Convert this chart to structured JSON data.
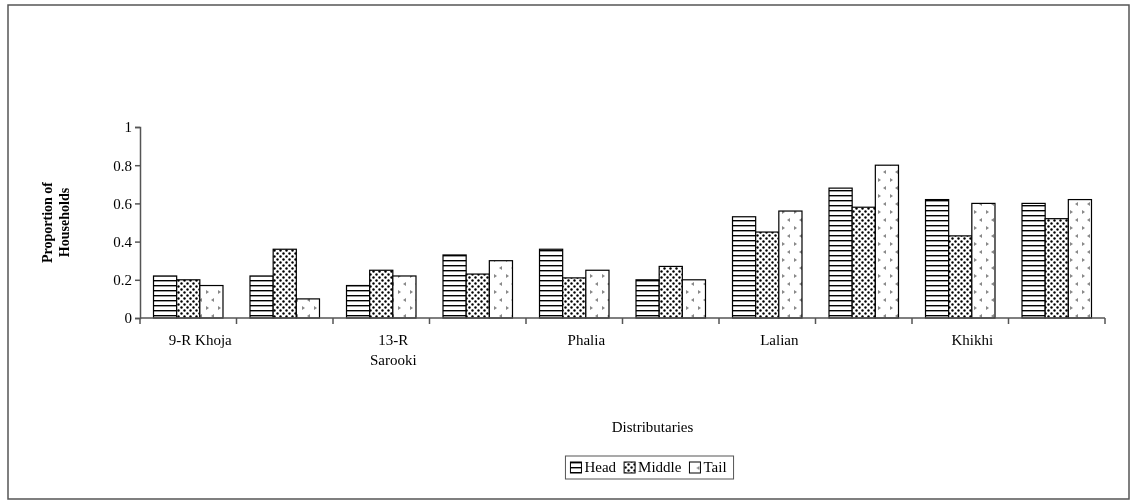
{
  "chart_data": {
    "type": "bar",
    "xlabel": "Distributaries",
    "ylabel": "Proportion of Households",
    "categories": [
      "9-R Khoja",
      null,
      "13-R Sarooki",
      null,
      "Phalia",
      null,
      "Lalian",
      null,
      "Khikhi",
      null
    ],
    "series": [
      {
        "name": "Head",
        "color": "#000000",
        "values": [
          0.22,
          0.22,
          0.17,
          0.33,
          0.36,
          0.2,
          0.53,
          0.68,
          0.62,
          0.6
        ]
      },
      {
        "name": "Middle",
        "color": "#000000",
        "values": [
          0.2,
          0.36,
          0.25,
          0.23,
          0.21,
          0.27,
          0.45,
          0.58,
          0.43,
          0.52
        ]
      },
      {
        "name": "Tail",
        "color": "#000000",
        "values": [
          0.17,
          0.1,
          0.22,
          0.3,
          0.25,
          0.2,
          0.56,
          0.8,
          0.6,
          0.62
        ]
      }
    ],
    "ylim": [
      0,
      1
    ],
    "yticks": [
      0,
      0.2,
      0.4,
      0.6,
      0.8,
      1
    ],
    "grid": false,
    "legend": "bottom"
  }
}
